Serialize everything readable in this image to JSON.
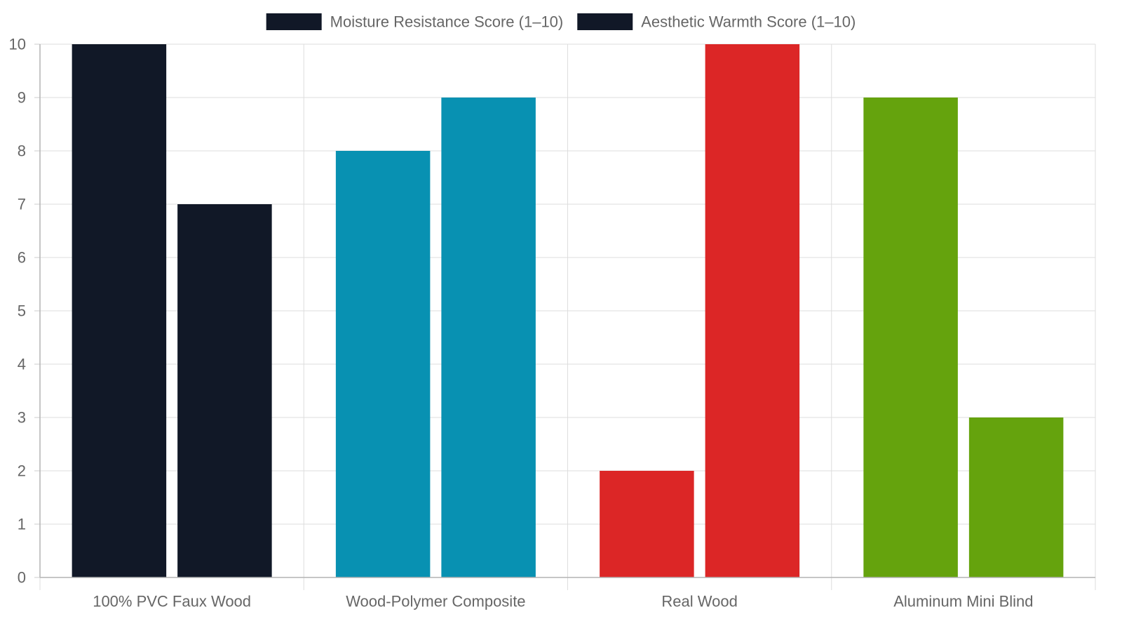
{
  "chart_data": {
    "type": "bar",
    "categories": [
      "100% PVC Faux Wood",
      "Wood-Polymer Composite",
      "Real Wood",
      "Aluminum Mini Blind"
    ],
    "series": [
      {
        "name": "Moisture Resistance Score (1–10)",
        "values": [
          10,
          8,
          2,
          9
        ]
      },
      {
        "name": "Aesthetic Warmth Score (1–10)",
        "values": [
          7,
          9,
          10,
          3
        ]
      }
    ],
    "bar_colors": [
      "#111827",
      "#0891b2",
      "#dc2626",
      "#65a30d"
    ],
    "legend_swatch_color": "#111827",
    "title": "",
    "xlabel": "",
    "ylabel": "",
    "ylim": [
      0,
      10
    ],
    "yticks": [
      0,
      1,
      2,
      3,
      4,
      5,
      6,
      7,
      8,
      9,
      10
    ],
    "grid": true,
    "legend_position": "top"
  }
}
